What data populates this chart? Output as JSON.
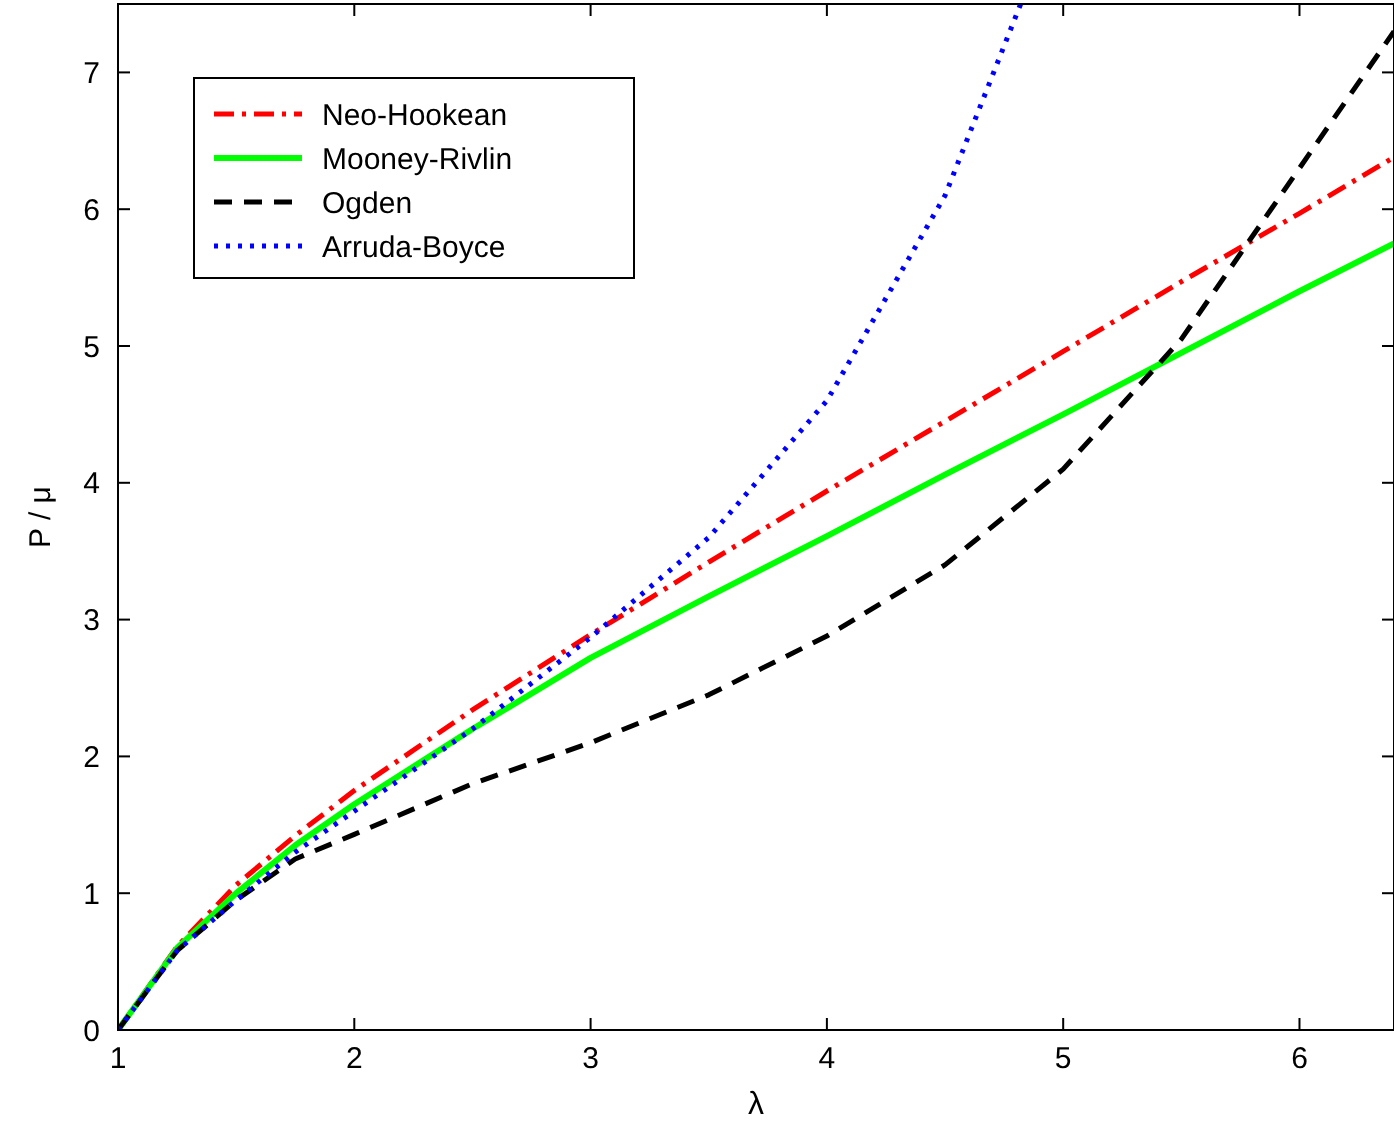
{
  "chart_data": {
    "type": "line",
    "xlabel": "λ",
    "ylabel": "P / μ",
    "xlim": [
      1,
      6.4
    ],
    "ylim": [
      0,
      7.5
    ],
    "xticks": [
      1,
      2,
      3,
      4,
      5,
      6
    ],
    "yticks": [
      0,
      1,
      2,
      3,
      4,
      5,
      6,
      7
    ],
    "grid": false,
    "legend": "top left",
    "marker": "none",
    "series": [
      {
        "name": "Neo-Hookean",
        "color": "#ff0000",
        "line_style": "dashdot",
        "x": [
          1,
          1.25,
          1.5,
          1.75,
          2,
          2.5,
          3,
          3.5,
          4,
          4.5,
          5,
          5.5,
          6,
          6.4
        ],
        "values": [
          0,
          0.61,
          1.06,
          1.42,
          1.75,
          2.34,
          2.89,
          3.42,
          3.94,
          4.45,
          4.96,
          5.47,
          5.97,
          6.38
        ]
      },
      {
        "name": "Mooney-Rivlin",
        "color": "#00ff00",
        "line_style": "solid",
        "x": [
          1,
          1.25,
          1.5,
          1.75,
          2,
          2.5,
          3,
          3.5,
          4,
          4.5,
          5,
          5.5,
          6,
          6.4
        ],
        "values": [
          0,
          0.6,
          1.0,
          1.35,
          1.65,
          2.2,
          2.72,
          3.17,
          3.61,
          4.06,
          4.5,
          4.95,
          5.4,
          5.75
        ]
      },
      {
        "name": "Ogden",
        "color": "#000000",
        "line_style": "dashed",
        "x": [
          1,
          1.25,
          1.5,
          1.75,
          2,
          2.5,
          3,
          3.5,
          4,
          4.5,
          5,
          5.5,
          6,
          6.4
        ],
        "values": [
          0,
          0.58,
          0.95,
          1.25,
          1.43,
          1.8,
          2.1,
          2.45,
          2.88,
          3.4,
          4.1,
          5.05,
          6.3,
          7.3
        ]
      },
      {
        "name": "Arruda-Boyce",
        "color": "#0000ff",
        "line_style": "dotted",
        "x": [
          1,
          1.25,
          1.5,
          1.75,
          2,
          2.5,
          3,
          3.5,
          4,
          4.5,
          4.82
        ],
        "values": [
          0,
          0.58,
          0.95,
          1.3,
          1.6,
          2.2,
          2.87,
          3.6,
          4.6,
          6.1,
          7.5
        ]
      }
    ]
  }
}
